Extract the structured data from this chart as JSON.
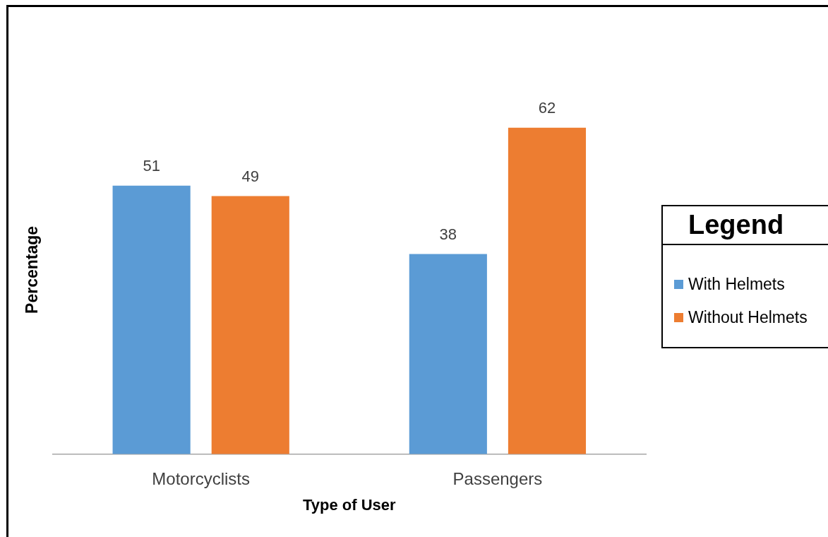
{
  "chart_data": {
    "type": "bar",
    "xlabel": "Type of User",
    "ylabel": "Percentage",
    "legend_title": "Legend",
    "categories": [
      "Motorcyclists",
      "Passengers"
    ],
    "series": [
      {
        "name": "With Helmets",
        "color": "#5b9bd5",
        "values": [
          51,
          38
        ]
      },
      {
        "name": "Without Helmets",
        "color": "#ed7d31",
        "values": [
          49,
          62
        ]
      }
    ],
    "data_labels": true,
    "legend": "right",
    "tick_labels": "x"
  }
}
